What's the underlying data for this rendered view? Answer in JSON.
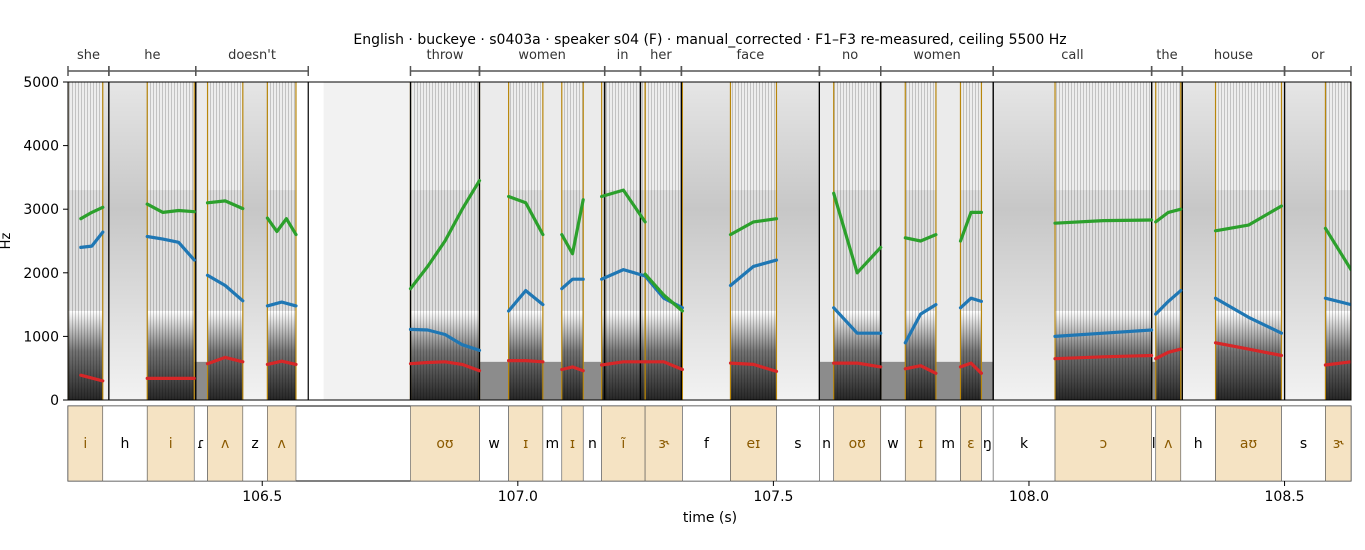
{
  "title": "English · buckeye · s0403a · speaker s04 (F) · manual_corrected · F1–F3 re-measured, ceiling 5500 Hz",
  "chart_data": {
    "type": "spectrogram",
    "xlabel": "time (s)",
    "ylabel": "Hz",
    "xlim": [
      106.12,
      108.63
    ],
    "ylim": [
      0,
      5000
    ],
    "xticks": [
      106.5,
      107.0,
      107.5,
      108.0,
      108.5
    ],
    "yticks": [
      0,
      1000,
      2000,
      3000,
      4000,
      5000
    ],
    "colors": {
      "F1": "#d62728",
      "F2": "#1f77b4",
      "F3": "#2ca02c",
      "vowel_fill": "#f5e3c3",
      "vowel_line": "#b8860b"
    },
    "words": [
      {
        "label": "she",
        "start": 106.12,
        "end": 106.2
      },
      {
        "label": "he",
        "start": 106.2,
        "end": 106.37
      },
      {
        "label": "doesn't",
        "start": 106.37,
        "end": 106.59
      },
      {
        "label": "throw",
        "start": 106.79,
        "end": 106.925
      },
      {
        "label": "women",
        "start": 106.925,
        "end": 107.17
      },
      {
        "label": "in",
        "start": 107.17,
        "end": 107.24
      },
      {
        "label": "her",
        "start": 107.24,
        "end": 107.32
      },
      {
        "label": "face",
        "start": 107.32,
        "end": 107.59
      },
      {
        "label": "no",
        "start": 107.59,
        "end": 107.71
      },
      {
        "label": "women",
        "start": 107.71,
        "end": 107.93
      },
      {
        "label": "call",
        "start": 107.93,
        "end": 108.24
      },
      {
        "label": "the",
        "start": 108.24,
        "end": 108.3
      },
      {
        "label": "house",
        "start": 108.3,
        "end": 108.5
      },
      {
        "label": "or",
        "start": 108.5,
        "end": 108.63
      }
    ],
    "phones": [
      {
        "label": "i",
        "start": 106.12,
        "end": 106.188,
        "vowel": true
      },
      {
        "label": "h",
        "start": 106.188,
        "end": 106.275,
        "vowel": false
      },
      {
        "label": "i",
        "start": 106.275,
        "end": 106.367,
        "vowel": true
      },
      {
        "label": "ɾ",
        "start": 106.367,
        "end": 106.393,
        "vowel": false
      },
      {
        "label": "ʌ",
        "start": 106.393,
        "end": 106.462,
        "vowel": true
      },
      {
        "label": "z",
        "start": 106.462,
        "end": 106.51,
        "vowel": false
      },
      {
        "label": "ʌ",
        "start": 106.51,
        "end": 106.566,
        "vowel": true
      },
      {
        "label": "oʊ",
        "start": 106.79,
        "end": 106.925,
        "vowel": true
      },
      {
        "label": "w",
        "start": 106.925,
        "end": 106.982,
        "vowel": false
      },
      {
        "label": "ɪ",
        "start": 106.982,
        "end": 107.049,
        "vowel": true
      },
      {
        "label": "m",
        "start": 107.049,
        "end": 107.086,
        "vowel": false
      },
      {
        "label": "ɪ",
        "start": 107.086,
        "end": 107.128,
        "vowel": true
      },
      {
        "label": "n",
        "start": 107.128,
        "end": 107.164,
        "vowel": false
      },
      {
        "label": "ĩ",
        "start": 107.164,
        "end": 107.249,
        "vowel": true
      },
      {
        "label": "ɝ",
        "start": 107.249,
        "end": 107.322,
        "vowel": true
      },
      {
        "label": "f",
        "start": 107.322,
        "end": 107.416,
        "vowel": false
      },
      {
        "label": "eɪ",
        "start": 107.416,
        "end": 107.506,
        "vowel": true
      },
      {
        "label": "s",
        "start": 107.506,
        "end": 107.59,
        "vowel": false
      },
      {
        "label": "n",
        "start": 107.59,
        "end": 107.618,
        "vowel": false
      },
      {
        "label": "oʊ",
        "start": 107.618,
        "end": 107.71,
        "vowel": true
      },
      {
        "label": "w",
        "start": 107.71,
        "end": 107.758,
        "vowel": false
      },
      {
        "label": "ɪ",
        "start": 107.758,
        "end": 107.818,
        "vowel": true
      },
      {
        "label": "m",
        "start": 107.818,
        "end": 107.866,
        "vowel": false
      },
      {
        "label": "ɛ",
        "start": 107.866,
        "end": 107.907,
        "vowel": true
      },
      {
        "label": "ŋ",
        "start": 107.907,
        "end": 107.93,
        "vowel": false
      },
      {
        "label": "k",
        "start": 107.93,
        "end": 108.051,
        "vowel": false
      },
      {
        "label": "ɔ",
        "start": 108.051,
        "end": 108.24,
        "vowel": true
      },
      {
        "label": "l",
        "start": 108.24,
        "end": 108.248,
        "vowel": false
      },
      {
        "label": "ʌ",
        "start": 108.248,
        "end": 108.297,
        "vowel": true
      },
      {
        "label": "h",
        "start": 108.297,
        "end": 108.365,
        "vowel": false
      },
      {
        "label": "aʊ",
        "start": 108.365,
        "end": 108.494,
        "vowel": true
      },
      {
        "label": "s",
        "start": 108.494,
        "end": 108.58,
        "vowel": false
      },
      {
        "label": "ɝ",
        "start": 108.58,
        "end": 108.63,
        "vowel": true
      }
    ],
    "formants": [
      {
        "start": 106.145,
        "end": 106.188,
        "F1": [
          390,
          300
        ],
        "F2": [
          2400,
          2420,
          2640
        ],
        "F3": [
          2850,
          2950,
          3030
        ]
      },
      {
        "start": 106.275,
        "end": 106.367,
        "F1": [
          340,
          340
        ],
        "F2": [
          2570,
          2530,
          2480,
          2200
        ],
        "F3": [
          3080,
          2950,
          2980,
          2960
        ]
      },
      {
        "start": 106.393,
        "end": 106.462,
        "F1": [
          570,
          670,
          600
        ],
        "F2": [
          1960,
          1800,
          1560
        ],
        "F3": [
          3100,
          3130,
          3010
        ]
      },
      {
        "start": 106.51,
        "end": 106.566,
        "F1": [
          560,
          610,
          560
        ],
        "F2": [
          1480,
          1540,
          1480
        ],
        "F3": [
          2860,
          2650,
          2850,
          2600
        ]
      },
      {
        "start": 106.79,
        "end": 106.925,
        "F1": [
          570,
          590,
          600,
          560,
          460
        ],
        "F2": [
          1110,
          1100,
          1030,
          870,
          780
        ],
        "F3": [
          1750,
          2100,
          2500,
          3000,
          3450
        ]
      },
      {
        "start": 106.982,
        "end": 107.049,
        "F1": [
          620,
          620,
          600
        ],
        "F2": [
          1400,
          1720,
          1500
        ],
        "F3": [
          3200,
          3100,
          2600
        ]
      },
      {
        "start": 107.086,
        "end": 107.128,
        "F1": [
          480,
          520,
          460
        ],
        "F2": [
          1750,
          1900,
          1900
        ],
        "F3": [
          2600,
          2300,
          3150
        ]
      },
      {
        "start": 107.164,
        "end": 107.249,
        "F1": [
          550,
          600,
          600
        ],
        "F2": [
          1900,
          2050,
          1950
        ],
        "F3": [
          3200,
          3300,
          2800
        ]
      },
      {
        "start": 107.249,
        "end": 107.322,
        "F1": [
          600,
          600,
          480
        ],
        "F2": [
          1950,
          1600,
          1450
        ],
        "F3": [
          1980,
          1650,
          1400
        ]
      },
      {
        "start": 107.416,
        "end": 107.506,
        "F1": [
          580,
          560,
          450
        ],
        "F2": [
          1800,
          2100,
          2200
        ],
        "F3": [
          2600,
          2800,
          2850
        ]
      },
      {
        "start": 107.618,
        "end": 107.71,
        "F1": [
          580,
          580,
          520
        ],
        "F2": [
          1450,
          1050,
          1050
        ],
        "F3": [
          3250,
          2000,
          2400
        ]
      },
      {
        "start": 107.758,
        "end": 107.818,
        "F1": [
          490,
          540,
          420
        ],
        "F2": [
          900,
          1350,
          1500
        ],
        "F3": [
          2550,
          2500,
          2600
        ]
      },
      {
        "start": 107.866,
        "end": 107.907,
        "F1": [
          520,
          580,
          420
        ],
        "F2": [
          1450,
          1600,
          1550
        ],
        "F3": [
          2500,
          2950,
          2950
        ]
      },
      {
        "start": 108.051,
        "end": 108.24,
        "F1": [
          650,
          680,
          700
        ],
        "F2": [
          1000,
          1050,
          1100
        ],
        "F3": [
          2780,
          2820,
          2830
        ]
      },
      {
        "start": 108.248,
        "end": 108.297,
        "F1": [
          650,
          750,
          800
        ],
        "F2": [
          1350,
          1550,
          1720
        ],
        "F3": [
          2800,
          2950,
          3000
        ]
      },
      {
        "start": 108.365,
        "end": 108.494,
        "F1": [
          900,
          800,
          700
        ],
        "F2": [
          1600,
          1300,
          1050
        ],
        "F3": [
          2660,
          2750,
          3050
        ]
      },
      {
        "start": 108.58,
        "end": 108.63,
        "F1": [
          550,
          600
        ],
        "F2": [
          1600,
          1500
        ],
        "F3": [
          2700,
          2050
        ]
      }
    ]
  }
}
